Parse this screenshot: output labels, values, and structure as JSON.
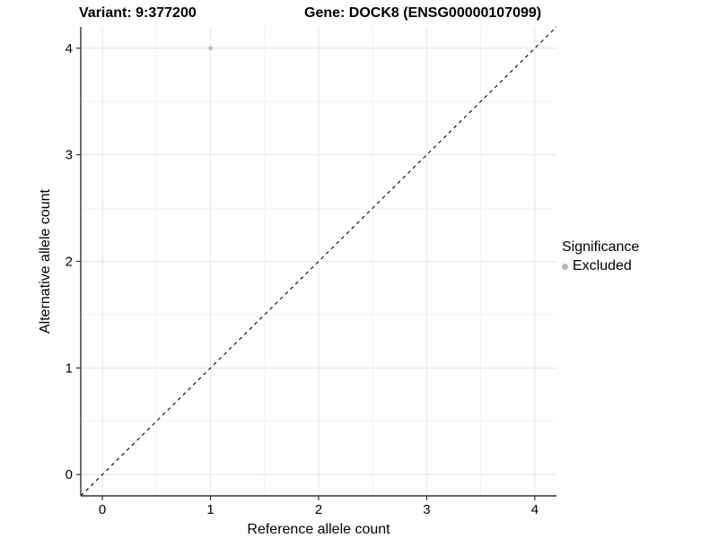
{
  "titles": {
    "variant": "Variant: 9:377200",
    "gene": "Gene: DOCK8 (ENSG00000107099)"
  },
  "legend": {
    "title": "Significance",
    "items": [
      {
        "label": "Excluded",
        "color": "#b5b5b5"
      }
    ],
    "position": "right"
  },
  "chart_data": {
    "type": "scatter",
    "xlabel": "Reference allele count",
    "ylabel": "Alternative allele count",
    "xlim": [
      -0.2,
      4.2
    ],
    "ylim": [
      -0.2,
      4.2
    ],
    "xticks": [
      0,
      1,
      2,
      3,
      4
    ],
    "yticks": [
      0,
      1,
      2,
      3,
      4
    ],
    "minor_ticks": [
      0.5,
      1.5,
      2.5,
      3.5
    ],
    "grid": true,
    "points": [
      {
        "x": 1,
        "y": 4,
        "series": "Excluded"
      }
    ],
    "identity_line": {
      "from": -0.2,
      "to": 4.2,
      "style": "dashed"
    },
    "colors": {
      "point": "#bcbcbc",
      "grid_major": "#e4e4e4",
      "grid_minor": "#f1f1f1",
      "axis_line": "#333333",
      "tick_text": "#000000",
      "identity_line": "#000000",
      "background": "#ffffff"
    }
  }
}
